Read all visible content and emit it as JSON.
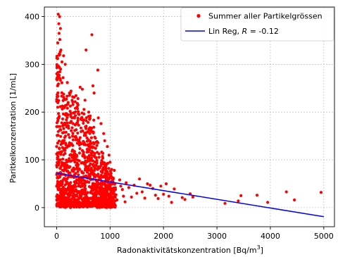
{
  "chart_data": {
    "type": "scatter",
    "title": "",
    "xlabel": "Radonaktivitätskonzentration [Bq/m",
    "xlabel_sup": "3",
    "xlabel_end": "]",
    "ylabel": "Paritkelkonzentration [1/mL]",
    "xlim": [
      -230,
      5200
    ],
    "ylim": [
      -40,
      420
    ],
    "xticks": [
      0,
      1000,
      2000,
      3000,
      4000,
      5000
    ],
    "yticks": [
      0,
      100,
      200,
      300,
      400
    ],
    "grid": true,
    "legend_position": "top-right",
    "series": [
      {
        "name": "Summer aller Partikelgrössen",
        "kind": "scatter",
        "color": "#ff0000",
        "cluster": {
          "x_range": [
            0,
            1100
          ],
          "y_range": [
            0,
            320
          ],
          "approx_count": 1400
        },
        "points": [
          [
            30,
            405
          ],
          [
            55,
            400
          ],
          [
            40,
            385
          ],
          [
            70,
            375
          ],
          [
            45,
            365
          ],
          [
            60,
            352
          ],
          [
            20,
            345
          ],
          [
            80,
            330
          ],
          [
            50,
            322
          ],
          [
            130,
            318
          ],
          [
            100,
            305
          ],
          [
            160,
            300
          ],
          [
            35,
            296
          ],
          [
            75,
            290
          ],
          [
            25,
            283
          ],
          [
            550,
            330
          ],
          [
            660,
            362
          ],
          [
            770,
            288
          ],
          [
            440,
            252
          ],
          [
            480,
            248
          ],
          [
            680,
            255
          ],
          [
            700,
            240
          ],
          [
            530,
            225
          ],
          [
            390,
            218
          ],
          [
            120,
            272
          ],
          [
            200,
            262
          ],
          [
            240,
            240
          ],
          [
            300,
            232
          ],
          [
            350,
            208
          ],
          [
            420,
            195
          ],
          [
            600,
            200
          ],
          [
            780,
            188
          ],
          [
            830,
            176
          ],
          [
            880,
            155
          ],
          [
            900,
            140
          ],
          [
            950,
            128
          ],
          [
            980,
            110
          ],
          [
            1000,
            95
          ],
          [
            1030,
            80
          ],
          [
            1080,
            78
          ],
          [
            1060,
            62
          ],
          [
            1090,
            50
          ],
          [
            1100,
            38
          ],
          [
            1110,
            27
          ],
          [
            1130,
            16
          ],
          [
            1180,
            58
          ],
          [
            1200,
            45
          ],
          [
            1230,
            38
          ],
          [
            1250,
            24
          ],
          [
            1280,
            12
          ],
          [
            1300,
            52
          ],
          [
            1350,
            42
          ],
          [
            1400,
            22
          ],
          [
            1450,
            47
          ],
          [
            1500,
            30
          ],
          [
            1550,
            60
          ],
          [
            1600,
            33
          ],
          [
            1650,
            20
          ],
          [
            1700,
            50
          ],
          [
            1750,
            47
          ],
          [
            1800,
            40
          ],
          [
            1850,
            26
          ],
          [
            1900,
            19
          ],
          [
            1950,
            45
          ],
          [
            2000,
            28
          ],
          [
            2050,
            50
          ],
          [
            2100,
            24
          ],
          [
            2150,
            11
          ],
          [
            2200,
            39
          ],
          [
            2350,
            21
          ],
          [
            2400,
            17
          ],
          [
            2500,
            29
          ],
          [
            2550,
            22
          ],
          [
            3150,
            9
          ],
          [
            3400,
            14
          ],
          [
            3450,
            25
          ],
          [
            3750,
            26
          ],
          [
            3950,
            11
          ],
          [
            4300,
            33
          ],
          [
            4450,
            16
          ],
          [
            4950,
            32
          ]
        ]
      },
      {
        "name": "Lin Reg, R = -0.12",
        "kind": "line",
        "color": "#0000ff",
        "x": [
          0,
          5000
        ],
        "y": [
          72,
          -19
        ]
      }
    ],
    "legend": [
      {
        "label": "Summer aller Partikelgrössen",
        "marker": "dot",
        "color": "#ff0000"
      },
      {
        "label_pre": "Lin Reg, ",
        "label_italic": "R",
        "label_post": " = -0.12",
        "marker": "line",
        "color": "#0000ff"
      }
    ]
  }
}
